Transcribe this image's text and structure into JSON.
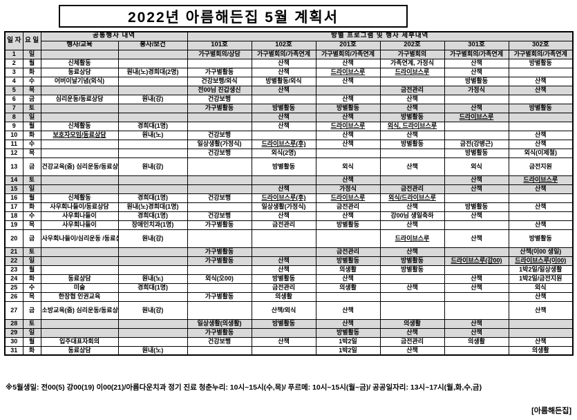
{
  "title": "2022년 아름해든집 5월 계획서",
  "table": {
    "date_header": "일\n자",
    "day_header": "요\n일",
    "common_group_header": "공통행사 내역",
    "common_columns": [
      "행사/교육",
      "봉사/보건"
    ],
    "room_group_header": "방별 프로그램 및 행사 세부내역",
    "room_columns": [
      "101호",
      "102호",
      "201호",
      "202호",
      "301호",
      "302호"
    ],
    "underline_keywords": [
      "드라이브스루",
      "보호자모임"
    ],
    "rows": [
      {
        "date": 1,
        "day": "일",
        "shaded": true,
        "tall": false,
        "cells": [
          "",
          "",
          "가구별회의/상담",
          "가구별회의/가족연계",
          "가구별회의/가족연계",
          "가구별회의",
          "가구별회의/가족연계",
          "가구별회의/가족연계"
        ]
      },
      {
        "date": 2,
        "day": "월",
        "shaded": false,
        "tall": false,
        "cells": [
          "신체활동",
          "",
          "",
          "산책",
          "산책",
          "가족연계, 가정식",
          "산책",
          "방별활동"
        ]
      },
      {
        "date": 3,
        "day": "화",
        "shaded": false,
        "tall": false,
        "cells": [
          "동료상담",
          "원내(노)경희대(2명)",
          "가구별활동",
          "산책",
          "드라이브스루",
          "드라이브스루",
          "산책",
          ""
        ]
      },
      {
        "date": 4,
        "day": "수",
        "shaded": false,
        "tall": false,
        "cells": [
          "어버이날기념(외식)",
          "",
          "건강보행/외식",
          "방별활동/외식",
          "산책",
          "",
          "방별활동",
          "산책"
        ]
      },
      {
        "date": 5,
        "day": "목",
        "shaded": true,
        "tall": false,
        "cells": [
          "",
          "",
          "전00님 진갑생신",
          "산책",
          "",
          "금전관리",
          "가정식",
          "산책"
        ]
      },
      {
        "date": 6,
        "day": "금",
        "shaded": false,
        "tall": false,
        "cells": [
          "심리운동/동료상담",
          "원내(강)",
          "건강보행",
          "",
          "산책",
          "산책",
          "",
          ""
        ]
      },
      {
        "date": 7,
        "day": "토",
        "shaded": true,
        "tall": false,
        "cells": [
          "",
          "",
          "가구별활동",
          "방별활동",
          "방별활동",
          "산책",
          "산책",
          "방별활동"
        ]
      },
      {
        "date": 8,
        "day": "일",
        "shaded": true,
        "tall": false,
        "cells": [
          "",
          "",
          "",
          "산책",
          "산책",
          "방별활동",
          "드라이브스루",
          ""
        ]
      },
      {
        "date": 9,
        "day": "월",
        "shaded": false,
        "tall": false,
        "cells": [
          "신체활동",
          "경희대(1명)",
          "",
          "산책",
          "드라이브스루",
          "외식, 드라이브스루",
          "",
          ""
        ]
      },
      {
        "date": 10,
        "day": "화",
        "shaded": false,
        "tall": false,
        "cells": [
          "보호자모임/동료상담",
          "원내(노)",
          "건강보행",
          "",
          "산책",
          "산책",
          "",
          "산책"
        ]
      },
      {
        "date": 11,
        "day": "수",
        "shaded": false,
        "tall": false,
        "cells": [
          "",
          "",
          "일상생활(가정식)",
          "드라이브스루(후)",
          "산책",
          "방별활동",
          "금전(강병근)",
          "산책"
        ]
      },
      {
        "date": 12,
        "day": "목",
        "shaded": false,
        "tall": false,
        "cells": [
          "",
          "",
          "건강보행",
          "외식(2명)",
          "",
          "",
          "방별활동",
          "외식(이제철)"
        ]
      },
      {
        "date": 13,
        "day": "금",
        "shaded": false,
        "tall": true,
        "cells": [
          "건강교육(줌)\n심리운동/동료상담",
          "원내(강)",
          "",
          "방별활동",
          "외식",
          "산책",
          "외식",
          "금전지원"
        ]
      },
      {
        "date": 14,
        "day": "토",
        "shaded": true,
        "tall": false,
        "cells": [
          "",
          "",
          "",
          "",
          "산책",
          "",
          "산책",
          "드라이브스루"
        ]
      },
      {
        "date": 15,
        "day": "일",
        "shaded": true,
        "tall": false,
        "cells": [
          "",
          "",
          "",
          "산책",
          "가정식",
          "금전관리",
          "산책",
          "산책"
        ]
      },
      {
        "date": 16,
        "day": "월",
        "shaded": false,
        "tall": false,
        "cells": [
          "신체활동",
          "경희대(1명)",
          "건강보행",
          "드라이브스루(후)",
          "드라이브스루",
          "외식/드라이브스루",
          "",
          ""
        ]
      },
      {
        "date": 17,
        "day": "화",
        "shaded": false,
        "tall": false,
        "cells": [
          "사우회나들이/동료상담",
          "원내(노)경희대(1명)",
          "",
          "일상생활(가정식)",
          "금전관리",
          "산책",
          "방별활동",
          "산책"
        ]
      },
      {
        "date": 18,
        "day": "수",
        "shaded": false,
        "tall": false,
        "cells": [
          "사우회나들이",
          "경희대(1명)",
          "건강보행",
          "산책",
          "산책",
          "강00님 생일축하",
          "산책",
          ""
        ]
      },
      {
        "date": 19,
        "day": "목",
        "shaded": false,
        "tall": false,
        "cells": [
          "사우회나들이",
          "장애인치과(1명)",
          "가구별활동",
          "금전관리",
          "방별활동",
          "산책",
          "",
          "산책"
        ]
      },
      {
        "date": 20,
        "day": "금",
        "shaded": false,
        "tall": true,
        "cells": [
          "사우회나들이/심리운동\n/동료상담",
          "원내(강)",
          "",
          "",
          "",
          "드라이브스루",
          "산책",
          "방별활동"
        ]
      },
      {
        "date": 21,
        "day": "토",
        "shaded": true,
        "tall": false,
        "cells": [
          "",
          "",
          "가구별활동",
          "",
          "금전관리",
          "산책",
          "",
          "산책(이00 생일)"
        ]
      },
      {
        "date": 22,
        "day": "일",
        "shaded": true,
        "tall": false,
        "cells": [
          "",
          "",
          "가구별활동",
          "산책",
          "방별활동",
          "방별활동",
          "드라이브스루(강00)",
          "드라이브스루(이00)"
        ]
      },
      {
        "date": 23,
        "day": "월",
        "shaded": false,
        "tall": false,
        "cells": [
          "",
          "",
          "",
          "산책",
          "의생활",
          "방별활동",
          "",
          "1박2일/일상생활"
        ]
      },
      {
        "date": 24,
        "day": "화",
        "shaded": false,
        "tall": false,
        "cells": [
          "동료상담",
          "원내(노)",
          "외식(오00)",
          "방별활동",
          "산책",
          "",
          "산책",
          "1박2일/금전지원"
        ]
      },
      {
        "date": 25,
        "day": "수",
        "shaded": false,
        "tall": false,
        "cells": [
          "미술",
          "경희대(1명)",
          "",
          "금전관리",
          "의생활",
          "산책",
          "산책",
          "외식"
        ]
      },
      {
        "date": 26,
        "day": "목",
        "shaded": false,
        "tall": false,
        "cells": [
          "한장협 인권교육",
          "",
          "가구별활동",
          "의생활",
          "",
          "",
          "",
          "산책"
        ]
      },
      {
        "date": 27,
        "day": "금",
        "shaded": false,
        "tall": true,
        "cells": [
          "소방교육(줌)\n심리운동/동료상담",
          "원내(강)",
          "",
          "산책/외식",
          "산책",
          "",
          "",
          "산책"
        ]
      },
      {
        "date": 28,
        "day": "토",
        "shaded": true,
        "tall": false,
        "cells": [
          "",
          "",
          "일상생활(의생활)",
          "방별활동",
          "산책",
          "의생활",
          "산책",
          ""
        ]
      },
      {
        "date": 29,
        "day": "일",
        "shaded": true,
        "tall": false,
        "cells": [
          "",
          "",
          "가구별활동",
          "",
          "방별활동",
          "산책",
          "산책",
          ""
        ]
      },
      {
        "date": 30,
        "day": "월",
        "shaded": false,
        "tall": false,
        "cells": [
          "입주대표자회의",
          "",
          "건강보행",
          "산책",
          "1박2일",
          "금전관리",
          "의생활",
          "산책"
        ]
      },
      {
        "date": 31,
        "day": "화",
        "shaded": false,
        "tall": false,
        "cells": [
          "동료상담",
          "원내(노)",
          "",
          "",
          "1박2일",
          "산책",
          "",
          "의생활"
        ]
      }
    ]
  },
  "footer": {
    "note": "※5월생일: 전00(5) 강00(19) 이00(21)/아름다운치과 정기 진료 청춘누리: 10시~15시(수,목)/ 푸르메: 10시~15시(월~금)/ 공공일자리: 13시~17시(월,화,수,금)",
    "signature": "[아름해든집]"
  }
}
